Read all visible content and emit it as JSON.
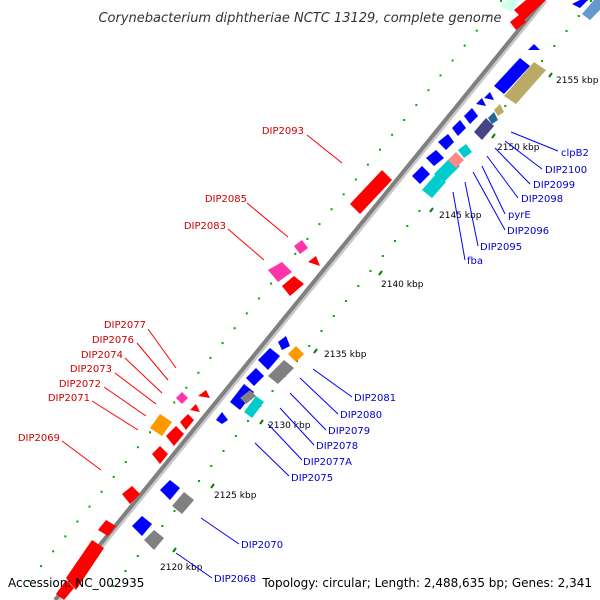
{
  "header": {
    "title": "Corynebacterium diphtheriae NCTC 13129, complete genome"
  },
  "footer": {
    "accession": "Accession: NC_002935",
    "summary": "Topology: circular; Length: 2,488,635 bp; Genes: 2,341"
  },
  "colors": {
    "backbone": "#808080",
    "forward_strand": "#ff0000",
    "reverse_strand": "#0000ff",
    "forward_label": "#cc0000",
    "reverse_label": "#0000cc",
    "tick": "#008000",
    "dots": "#00aa00",
    "magenta": "#ff33aa",
    "orange": "#ff9900",
    "gray": "#808080",
    "cyan": "#00cccc",
    "olive": "#bbaa66"
  },
  "ticks": [
    {
      "label": "2120 kbp"
    },
    {
      "label": "2125 kbp"
    },
    {
      "label": "2130 kbp"
    },
    {
      "label": "2135 kbp"
    },
    {
      "label": "2140 kbp"
    },
    {
      "label": "2145 kbp"
    },
    {
      "label": "2150 kbp"
    },
    {
      "label": "2155 kbp"
    }
  ],
  "labels_forward": [
    "DIP2093",
    "DIP2085",
    "DIP2083",
    "DIP2077",
    "DIP2076",
    "DIP2074",
    "DIP2073",
    "DIP2072",
    "DIP2071",
    "DIP2069"
  ],
  "labels_reverse": [
    "clpB2",
    "DIP2100",
    "DIP2099",
    "DIP2098",
    "pyrE",
    "DIP2096",
    "DIP2095",
    "fba",
    "DIP2081",
    "DIP2080",
    "DIP2079",
    "DIP2078",
    "DIP2077A",
    "DIP2075",
    "DIP2070",
    "DIP2068"
  ]
}
